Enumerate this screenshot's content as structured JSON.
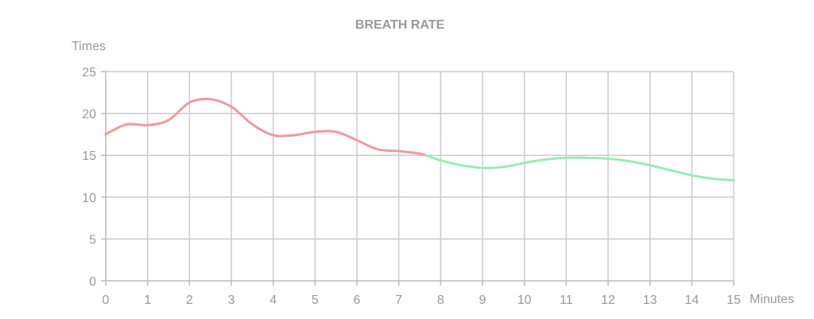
{
  "chart_data": {
    "type": "line",
    "title": "BREATH RATE",
    "ylabel": "Times",
    "xlabel": "Minutes",
    "xlim": [
      0,
      15
    ],
    "ylim": [
      0,
      25
    ],
    "x_ticks": [
      "0",
      "1",
      "2",
      "3",
      "4",
      "5",
      "6",
      "7",
      "8",
      "9",
      "10",
      "11",
      "12",
      "13",
      "14",
      "15"
    ],
    "y_ticks": [
      "0",
      "5",
      "10",
      "15",
      "20",
      "25"
    ],
    "grid": true,
    "colors": {
      "series_1": "#f0999a",
      "series_2": "#99ebb6",
      "grid": "#cccccc",
      "axis": "#bbbbbb",
      "text": "#999999"
    },
    "series": [
      {
        "x": [
          0,
          0.5,
          1,
          1.5,
          2,
          2.5,
          3,
          3.5,
          4,
          4.5,
          5,
          5.5,
          6,
          6.5,
          7,
          7.5,
          7.65
        ],
        "y": [
          17.5,
          18.7,
          18.6,
          19.2,
          21.3,
          21.7,
          20.8,
          18.7,
          17.4,
          17.4,
          17.8,
          17.8,
          16.8,
          15.7,
          15.5,
          15.2,
          15.0
        ]
      },
      {
        "x": [
          7.65,
          8,
          8.5,
          9,
          9.5,
          10,
          10.5,
          11,
          11.5,
          12,
          12.5,
          13,
          13.5,
          14,
          14.5,
          15
        ],
        "y": [
          15.0,
          14.4,
          13.8,
          13.5,
          13.6,
          14.1,
          14.5,
          14.7,
          14.7,
          14.6,
          14.3,
          13.8,
          13.2,
          12.6,
          12.2,
          12.0
        ]
      }
    ]
  }
}
